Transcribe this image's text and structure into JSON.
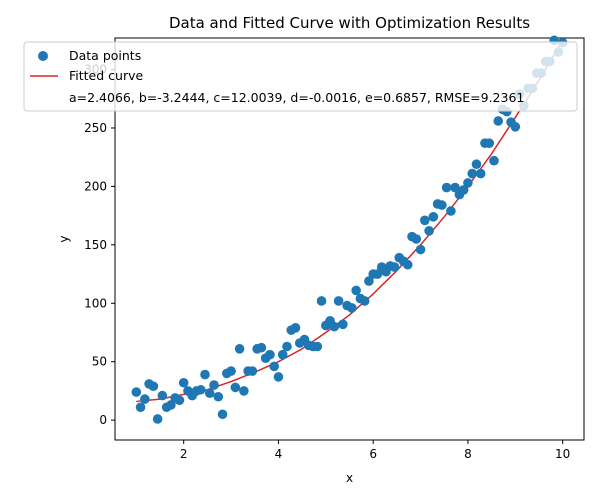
{
  "chart_data": {
    "type": "scatter",
    "title": "Data and Fitted Curve with Optimization Results",
    "xlabel": "x",
    "ylabel": "y",
    "xlim": [
      0.55,
      10.45
    ],
    "ylim": [
      -17,
      327
    ],
    "xticks": [
      2,
      4,
      6,
      8,
      10
    ],
    "yticks": [
      0,
      50,
      100,
      150,
      200,
      250,
      300
    ],
    "grid": false,
    "legend_position": "upper-left",
    "marker_color": "#1f77b4",
    "line_color": "#d62728",
    "series": [
      {
        "name": "Data points",
        "kind": "scatter",
        "x": [
          1.0,
          1.09,
          1.18,
          1.27,
          1.36,
          1.45,
          1.55,
          1.64,
          1.73,
          1.82,
          1.91,
          2.0,
          2.09,
          2.18,
          2.27,
          2.36,
          2.45,
          2.55,
          2.64,
          2.73,
          2.82,
          2.91,
          3.0,
          3.09,
          3.18,
          3.27,
          3.36,
          3.45,
          3.55,
          3.64,
          3.73,
          3.82,
          3.91,
          4.0,
          4.09,
          4.18,
          4.27,
          4.36,
          4.45,
          4.55,
          4.64,
          4.73,
          4.82,
          4.91,
          5.0,
          5.09,
          5.18,
          5.27,
          5.36,
          5.45,
          5.55,
          5.64,
          5.73,
          5.82,
          5.91,
          6.0,
          6.09,
          6.18,
          6.27,
          6.36,
          6.45,
          6.55,
          6.64,
          6.73,
          6.82,
          6.91,
          7.0,
          7.09,
          7.18,
          7.27,
          7.36,
          7.45,
          7.55,
          7.64,
          7.73,
          7.82,
          7.91,
          8.0,
          8.09,
          8.18,
          8.27,
          8.36,
          8.45,
          8.55,
          8.64,
          8.73,
          8.82,
          8.91,
          9.0,
          9.09,
          9.18,
          9.27,
          9.36,
          9.45,
          9.55,
          9.64,
          9.73,
          9.82,
          9.91,
          10.0
        ],
        "y": [
          24,
          11,
          18,
          31,
          29,
          1,
          21,
          11,
          13,
          19,
          17,
          32,
          25,
          21,
          25,
          26,
          39,
          23,
          30,
          20,
          5,
          40,
          42,
          28,
          61,
          25,
          42,
          42,
          61,
          62,
          53,
          56,
          46,
          37,
          56,
          63,
          77,
          79,
          66,
          69,
          64,
          63,
          63,
          102,
          81,
          85,
          80,
          102,
          82,
          98,
          96,
          111,
          104,
          102,
          119,
          125,
          125,
          131,
          127,
          132,
          131,
          139,
          136,
          133,
          157,
          155,
          146,
          171,
          162,
          174,
          185,
          184,
          199,
          179,
          199,
          193,
          197,
          203,
          211,
          219,
          211,
          237,
          237,
          222,
          256,
          266,
          264,
          255,
          251,
          279,
          269,
          284,
          284,
          297,
          297,
          307,
          307,
          325,
          315,
          323
        ]
      },
      {
        "name": "Fitted curve",
        "kind": "line",
        "x": [
          1.0,
          1.5,
          2.0,
          2.5,
          3.0,
          3.5,
          4.0,
          4.5,
          5.0,
          5.5,
          6.0,
          6.5,
          7.0,
          7.5,
          8.0,
          8.5,
          9.0,
          9.5,
          10.0
        ],
        "y": [
          16,
          18,
          22,
          26,
          33,
          41,
          50,
          61,
          75,
          90,
          108,
          128,
          150,
          174,
          200,
          228,
          259,
          291,
          325
        ]
      }
    ],
    "legend": {
      "entries": [
        "Data points",
        "Fitted curve"
      ],
      "annotation": "a=2.4066, b=-3.2444, c=12.0039, d=-0.0016, e=0.6857, RMSE=9.2361"
    }
  }
}
